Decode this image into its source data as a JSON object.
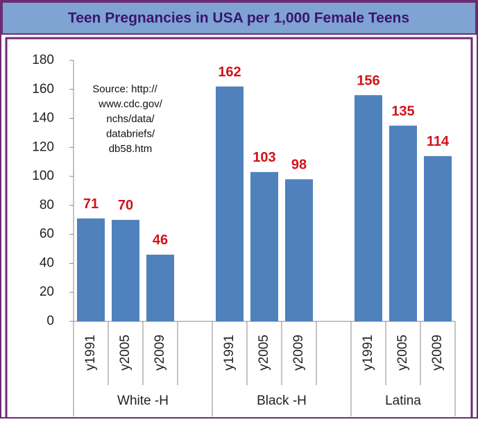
{
  "chart_data": {
    "type": "bar",
    "title": "Teen Pregnancies in USA per 1,000 Female Teens",
    "annotation": [
      "Source: http://",
      "www.cdc.gov/",
      "nchs/data/",
      "databriefs/",
      "db58.htm"
    ],
    "groups": [
      {
        "name": "White -H",
        "categories": [
          "y1991",
          "y2005",
          "y2009"
        ],
        "values": [
          71,
          70,
          46
        ]
      },
      {
        "name": "Black -H",
        "categories": [
          "y1991",
          "y2005",
          "y2009"
        ],
        "values": [
          162,
          103,
          98
        ]
      },
      {
        "name": "Latina",
        "categories": [
          "y1991",
          "y2005",
          "y2009"
        ],
        "values": [
          156,
          135,
          114
        ]
      }
    ],
    "color": "#4f81bd",
    "label_color": "#d0141a",
    "ylim": [
      0,
      180
    ],
    "yticks": [
      0,
      20,
      40,
      60,
      80,
      100,
      120,
      140,
      160,
      180
    ],
    "grid": false
  }
}
